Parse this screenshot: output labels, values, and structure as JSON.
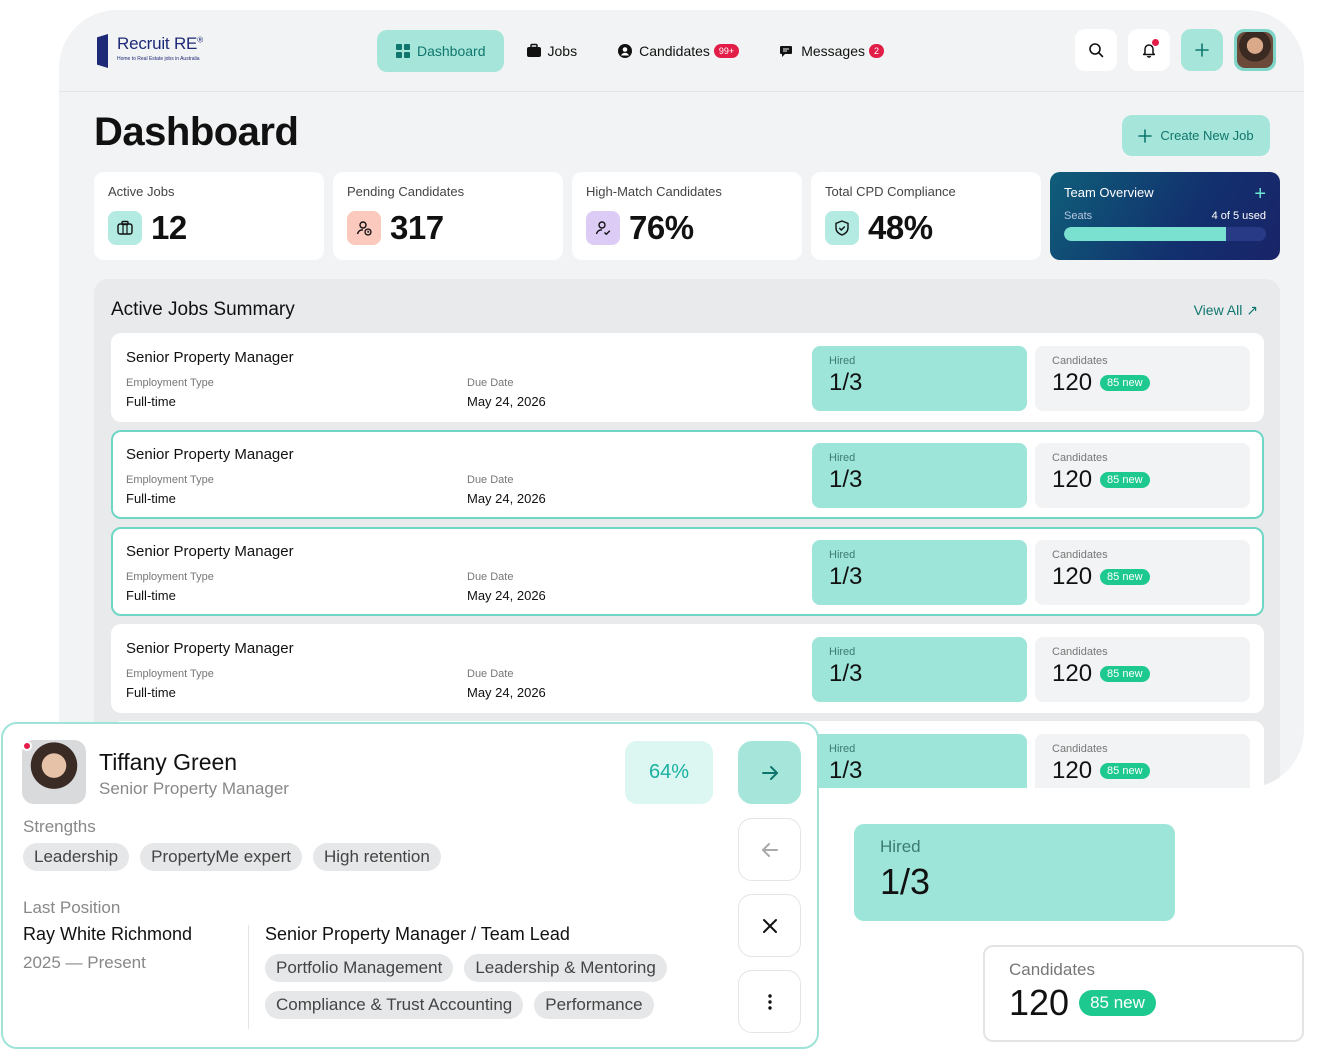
{
  "brand": {
    "name": "Recruit RE",
    "mark": "®",
    "tagline": "Home to Real Estate jobs in Australia"
  },
  "nav": {
    "dashboard": "Dashboard",
    "jobs": "Jobs",
    "candidates": "Candidates",
    "candidates_badge": "99+",
    "messages": "Messages",
    "messages_badge": "2"
  },
  "page": {
    "title": "Dashboard",
    "create_label": "Create New Job"
  },
  "stats": {
    "active_jobs": {
      "label": "Active Jobs",
      "value": "12"
    },
    "pending": {
      "label": "Pending Candidates",
      "value": "317"
    },
    "high_match": {
      "label": "High-Match Candidates",
      "value": "76%"
    },
    "cpd": {
      "label": "Total CPD Compliance",
      "value": "48%"
    }
  },
  "team": {
    "title": "Team Overview",
    "seats_label": "Seats",
    "seats_used": "4 of 5 used",
    "seats_fraction": 0.8
  },
  "summary": {
    "title": "Active Jobs Summary",
    "view_all": "View All",
    "rows": [
      {
        "title": "Senior Property Manager",
        "emp_label": "Employment Type",
        "emp_value": "Full-time",
        "due_label": "Due Date",
        "due_value": "May 24, 2026",
        "hired_label": "Hired",
        "hired_value": "1/3",
        "cand_label": "Candidates",
        "cand_value": "120",
        "cand_new": "85 new"
      },
      {
        "title": "Senior Property Manager",
        "emp_label": "Employment Type",
        "emp_value": "Full-time",
        "due_label": "Due Date",
        "due_value": "May 24, 2026",
        "hired_label": "Hired",
        "hired_value": "1/3",
        "cand_label": "Candidates",
        "cand_value": "120",
        "cand_new": "85 new"
      },
      {
        "title": "Senior Property Manager",
        "emp_label": "Employment Type",
        "emp_value": "Full-time",
        "due_label": "Due Date",
        "due_value": "May 24, 2026",
        "hired_label": "Hired",
        "hired_value": "1/3",
        "cand_label": "Candidates",
        "cand_value": "120",
        "cand_new": "85 new"
      },
      {
        "title": "Senior Property Manager",
        "emp_label": "Employment Type",
        "emp_value": "Full-time",
        "due_label": "Due Date",
        "due_value": "May 24, 2026",
        "hired_label": "Hired",
        "hired_value": "1/3",
        "cand_label": "Candidates",
        "cand_value": "120",
        "cand_new": "85 new"
      },
      {
        "title": "",
        "emp_label": "",
        "emp_value": "",
        "due_label": "",
        "due_value": "",
        "hired_label": "Hired",
        "hired_value": "1/3",
        "cand_label": "Candidates",
        "cand_value": "120",
        "cand_new": "85 new"
      }
    ]
  },
  "candidate": {
    "name": "Tiffany Green",
    "role": "Senior Property Manager",
    "match": "64%",
    "strengths_label": "Strengths",
    "strengths": [
      "Leadership",
      "PropertyMe expert",
      "High retention"
    ],
    "last_position_label": "Last Position",
    "company": "Ray White Richmond",
    "period": "2025 — Present",
    "position": "Senior Property Manager / Team Lead",
    "skills": [
      "Portfolio Management",
      "Leadership & Mentoring",
      "Compliance & Trust Accounting",
      "Performance"
    ]
  },
  "float_hired": {
    "label": "Hired",
    "value": "1/3"
  },
  "float_cands": {
    "label": "Candidates",
    "value": "120",
    "new": "85 new"
  },
  "colors": {
    "accent": "#a6e6da",
    "accent_dark": "#0f766e",
    "alert": "#e11d48",
    "new_badge": "#1ec98f"
  }
}
